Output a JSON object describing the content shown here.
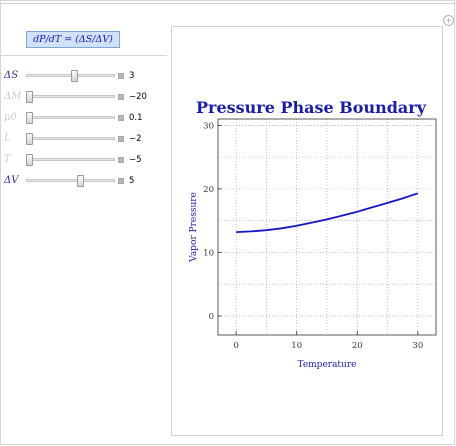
{
  "equation_button": {
    "label": "dP/dT = (ΔS/ΔV)"
  },
  "sliders": [
    {
      "label": "ΔS",
      "value": "3",
      "fraction": 0.55,
      "active": true
    },
    {
      "label": "ΔM",
      "value": "−20",
      "fraction": 0.0,
      "active": false
    },
    {
      "label": "μ0",
      "value": "0.1",
      "fraction": 0.0,
      "active": false
    },
    {
      "label": "L",
      "value": "−2",
      "fraction": 0.0,
      "active": false
    },
    {
      "label": "T",
      "value": "−5",
      "fraction": 0.0,
      "active": false
    },
    {
      "label": "ΔV",
      "value": "5",
      "fraction": 0.62,
      "active": true
    }
  ],
  "chart_data": {
    "type": "line",
    "title": "Pressure Phase Boundary",
    "xlabel": "Temperature",
    "ylabel": "Vapor Pressure",
    "xlim": [
      -3,
      33
    ],
    "ylim": [
      -3,
      31
    ],
    "xticks": [
      "0",
      "10",
      "20",
      "30"
    ],
    "yticks": [
      "0",
      "10",
      "20",
      "30"
    ],
    "grid": true,
    "colors": {
      "line": "#1515c8",
      "title": "#1a1ab0",
      "axis_label": "#1a1ab0"
    },
    "series": [
      {
        "x": [
          0,
          2.5,
          5,
          7.5,
          10,
          12.5,
          15,
          17.5,
          20,
          22.5,
          25,
          27.5,
          30
        ],
        "y": [
          13.2,
          13.3,
          13.5,
          13.8,
          14.2,
          14.7,
          15.2,
          15.8,
          16.4,
          17.1,
          17.8,
          18.5,
          19.3
        ]
      }
    ]
  }
}
